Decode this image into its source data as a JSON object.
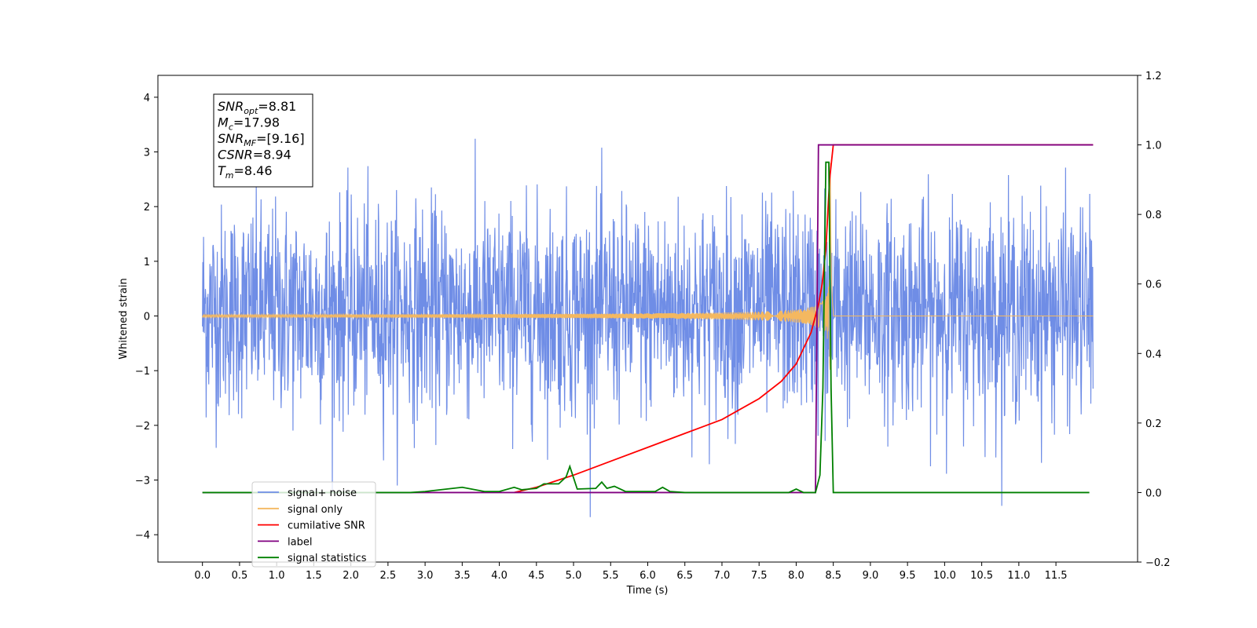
{
  "chart_data": {
    "type": "line",
    "xlabel": "Time (s)",
    "ylabel_left": "Whitened strain",
    "xlim": [
      -0.6,
      12.6
    ],
    "ylim_left": [
      -4.5,
      4.4
    ],
    "ylim_right": [
      -0.2,
      1.2
    ],
    "xticks": [
      0.0,
      0.5,
      1.0,
      1.5,
      2.0,
      2.5,
      3.0,
      3.5,
      4.0,
      4.5,
      5.0,
      5.5,
      6.0,
      6.5,
      7.0,
      7.5,
      8.0,
      8.5,
      9.0,
      9.5,
      10.0,
      10.5,
      11.0,
      11.5
    ],
    "xtick_labels": [
      "0.0",
      "0.5",
      "1.0",
      "1.5",
      "2.0",
      "2.5",
      "3.0",
      "3.5",
      "4.0",
      "4.5",
      "5.0",
      "5.5",
      "6.0",
      "6.5",
      "7.0",
      "7.5",
      "8.0",
      "8.5",
      "9.0",
      "9.5",
      "10.0",
      "10.5",
      "11.0",
      "11.5"
    ],
    "yticks_left": [
      4,
      3,
      2,
      1,
      0,
      -1,
      -2,
      -3,
      -4
    ],
    "ytick_labels_left": [
      "4",
      "3",
      "2",
      "1",
      "0",
      "−1",
      "−2",
      "−3",
      "−4"
    ],
    "yticks_right": [
      1.2,
      1.0,
      0.8,
      0.6,
      0.4,
      0.2,
      0.0,
      -0.2
    ],
    "ytick_labels_right": [
      "1.2",
      "1.0",
      "0.8",
      "0.6",
      "0.4",
      "0.2",
      "0.0",
      "−0.2"
    ],
    "series": [
      {
        "name": "signal+ noise",
        "axis": "left",
        "color": "#6f8de6",
        "kind": "noise",
        "t_start": 0.0,
        "t_end": 12.0,
        "typical_band": [
          -1.8,
          2.0
        ],
        "max": 3.9,
        "min": -4.1
      },
      {
        "name": "signal only",
        "axis": "left",
        "color": "#f4b860",
        "kind": "chirp",
        "t_start": 0.0,
        "t_end": 12.0,
        "merger_time": 8.46,
        "peak_amplitude": 2.8
      },
      {
        "name": "cumilative SNR",
        "axis": "right",
        "color": "#ff0000",
        "x": [
          4.2,
          4.5,
          5.0,
          5.5,
          6.0,
          6.5,
          7.0,
          7.5,
          7.8,
          8.0,
          8.2,
          8.3,
          8.35,
          8.4,
          8.45,
          8.5,
          12.0
        ],
        "y": [
          0.0,
          0.015,
          0.05,
          0.09,
          0.13,
          0.17,
          0.21,
          0.27,
          0.32,
          0.37,
          0.46,
          0.54,
          0.6,
          0.7,
          0.9,
          1.0,
          1.0
        ]
      },
      {
        "name": "label",
        "axis": "right",
        "color": "#800080",
        "x": [
          0.0,
          8.26,
          8.3,
          8.42,
          8.46,
          8.5,
          12.0
        ],
        "y": [
          0.0,
          0.0,
          1.0,
          1.0,
          1.0,
          1.0,
          1.0
        ]
      },
      {
        "name": "signal statistics",
        "axis": "right",
        "color": "#008000",
        "x": [
          0.0,
          2.8,
          3.0,
          3.5,
          3.8,
          4.0,
          4.2,
          4.3,
          4.5,
          4.6,
          4.8,
          4.9,
          4.95,
          5.05,
          5.3,
          5.38,
          5.45,
          5.55,
          5.7,
          6.1,
          6.2,
          6.3,
          6.5,
          7.9,
          8.0,
          8.1,
          8.26,
          8.32,
          8.36,
          8.4,
          8.44,
          8.47,
          8.5,
          11.95
        ],
        "y": [
          0.0,
          0.0,
          0.003,
          0.015,
          0.003,
          0.003,
          0.015,
          0.008,
          0.012,
          0.025,
          0.025,
          0.045,
          0.075,
          0.01,
          0.012,
          0.03,
          0.012,
          0.018,
          0.003,
          0.003,
          0.015,
          0.003,
          0.0,
          0.0,
          0.01,
          0.0,
          0.0,
          0.05,
          0.3,
          0.95,
          0.95,
          0.3,
          0.0,
          0.0
        ]
      }
    ],
    "legend": {
      "position": "lower-left",
      "entries": [
        {
          "label": "signal+ noise",
          "color": "#6f8de6"
        },
        {
          "label": "signal only",
          "color": "#f4b860"
        },
        {
          "label": "cumilative SNR",
          "color": "#ff0000"
        },
        {
          "label": "label",
          "color": "#800080"
        },
        {
          "label": "signal statistics",
          "color": "#008000"
        }
      ]
    },
    "annotation_box": {
      "lines": [
        {
          "base": "SNR",
          "sub": "opt",
          "value": "=8.81"
        },
        {
          "base": "M",
          "sub": "c",
          "value": "=17.98"
        },
        {
          "base": "SNR",
          "sub": "MF",
          "value": "=[9.16]"
        },
        {
          "base": "CSNR",
          "sub": "",
          "value": "=8.94"
        },
        {
          "base": "T",
          "sub": "m",
          "value": "=8.46"
        }
      ]
    }
  }
}
